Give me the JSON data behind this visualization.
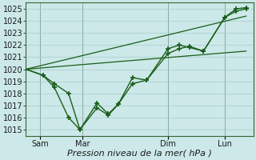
{
  "xlabel": "Pression niveau de la mer( hPa )",
  "background_color": "#cce8e8",
  "grid_color": "#aacccc",
  "line_color": "#1a5e1a",
  "ylim": [
    1014.5,
    1025.5
  ],
  "yticks": [
    1015,
    1016,
    1017,
    1018,
    1019,
    1020,
    1021,
    1022,
    1023,
    1024,
    1025
  ],
  "xlim": [
    0,
    16
  ],
  "xtick_positions": [
    1,
    4,
    10,
    14
  ],
  "xtick_labels": [
    "Sam",
    "Mar",
    "Dim",
    "Lun"
  ],
  "vlines": [
    1,
    4,
    10,
    14
  ],
  "series1_x": [
    0,
    1.2,
    2,
    3,
    3.8,
    5,
    5.8,
    6.5,
    7.5,
    8.5,
    10,
    10.8,
    11.5,
    12.5,
    14,
    14.8,
    15.5
  ],
  "series1_y": [
    1020,
    1019.5,
    1018.8,
    1018.0,
    1015.0,
    1016.8,
    1016.2,
    1017.1,
    1019.3,
    1019.1,
    1021.7,
    1022.0,
    1021.8,
    1021.5,
    1024.3,
    1024.8,
    1025.0
  ],
  "series2_x": [
    0,
    1.2,
    2,
    3,
    3.8,
    5,
    5.8,
    6.5,
    7.5,
    8.5,
    10,
    10.8,
    11.5,
    12.5,
    14,
    14.8,
    15.5
  ],
  "series2_y": [
    1020,
    1019.5,
    1018.5,
    1016.0,
    1015.0,
    1017.2,
    1016.3,
    1017.1,
    1018.8,
    1019.1,
    1021.3,
    1021.7,
    1021.9,
    1021.5,
    1024.3,
    1025.0,
    1025.1
  ],
  "line3_x": [
    0,
    15.5
  ],
  "line3_y": [
    1020,
    1024.4
  ],
  "line4_x": [
    0,
    15.5
  ],
  "line4_y": [
    1020,
    1021.5
  ],
  "linewidth": 1.0,
  "marker": "+",
  "marker_size": 4,
  "marker_linewidth": 1.2,
  "xlabel_fontsize": 8,
  "tick_fontsize": 7
}
